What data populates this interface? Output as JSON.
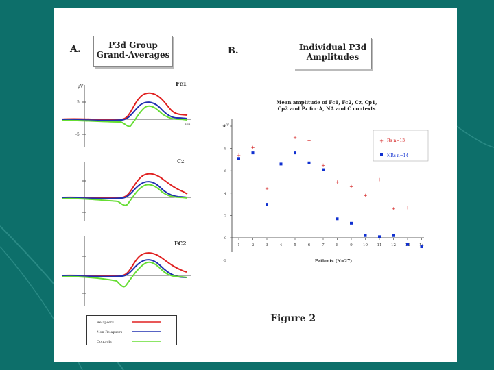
{
  "panel_a": {
    "letter": "A.",
    "title_line1": "P3d Group",
    "title_line2": "Grand-Averages",
    "axis_unit": "µV",
    "tick_pos": "5",
    "tick_neg": "-5",
    "time_unit": "ms",
    "electrodes": [
      "Fc1",
      "Cz",
      "FC2"
    ],
    "legend": [
      {
        "label": "Relapsers",
        "color": "#e02020"
      },
      {
        "label": "Non Relapsers",
        "color": "#2030b0"
      },
      {
        "label": "Controls",
        "color": "#66dd33"
      }
    ]
  },
  "panel_b": {
    "letter": "B.",
    "title_line1": "Individual P3d",
    "title_line2": "Amplitudes"
  },
  "figure_caption": "Figure 2",
  "chart_data": {
    "type": "scatter",
    "title": "Mean amplitude of Fc1, Fc2, Cz, Cp1, Cp2 and Pz for A, NA and C contexts",
    "title_line1": "Mean amplitude of Fc1, Fc2, Cz, Cp1,",
    "title_line2": "Cp2 and Pz for A, NA and C contexts",
    "xlabel": "Patients (N=27)",
    "ylabel": "µV",
    "ylim": [
      -2,
      10
    ],
    "yticks": [
      -2,
      0,
      2,
      4,
      6,
      8,
      10
    ],
    "xticks": [
      1,
      2,
      3,
      4,
      5,
      6,
      7,
      8,
      9,
      10,
      11,
      12,
      13,
      14
    ],
    "series": [
      {
        "name": "Rs",
        "legend_label": "Rs   n=13",
        "color": "#d42020",
        "marker": "+",
        "x": [
          1,
          2,
          3,
          5,
          6,
          7,
          8,
          9,
          10,
          11,
          12,
          13
        ],
        "y": [
          7.4,
          8.1,
          4.4,
          9.0,
          8.7,
          6.5,
          5.0,
          4.6,
          3.8,
          5.2,
          2.6,
          2.7
        ]
      },
      {
        "name": "NRs",
        "legend_label": "NRs  n=14",
        "color": "#1030d0",
        "marker": "square",
        "x": [
          1,
          2,
          3,
          4,
          5,
          6,
          7,
          8,
          9,
          10,
          11,
          12,
          13,
          14
        ],
        "y": [
          7.1,
          7.6,
          3.0,
          6.6,
          7.6,
          6.7,
          6.1,
          1.7,
          1.3,
          0.2,
          0.1,
          0.2,
          -0.6,
          -0.8
        ]
      }
    ]
  }
}
